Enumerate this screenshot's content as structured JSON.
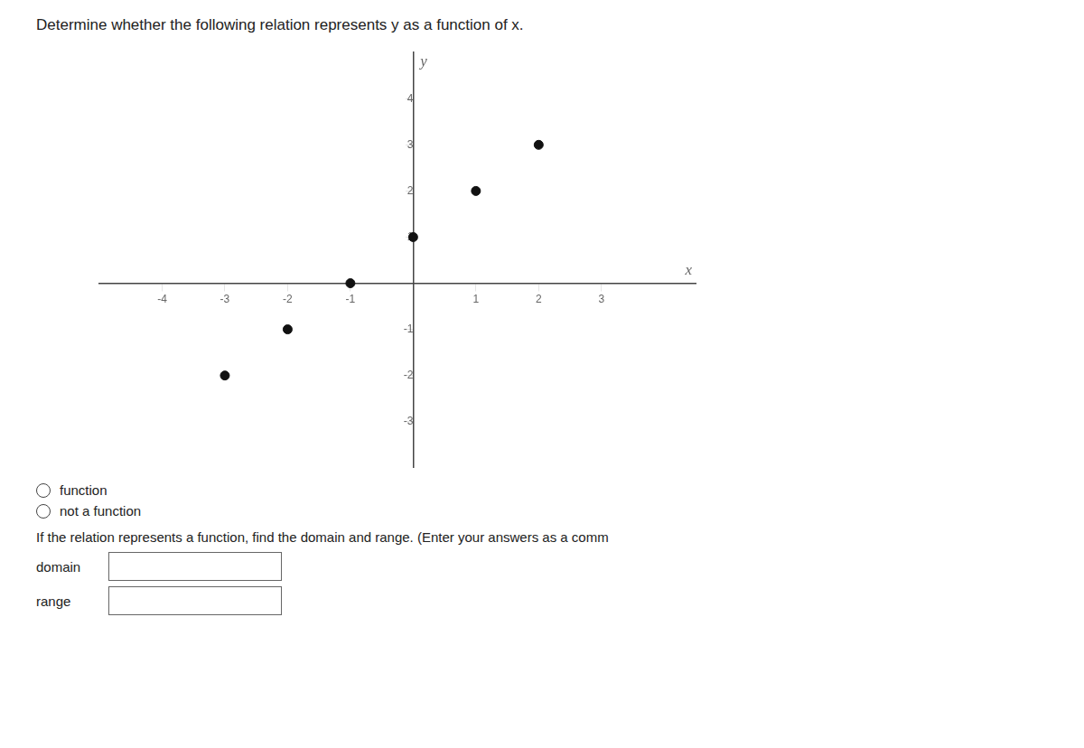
{
  "chart_data": {
    "type": "scatter",
    "title": "Determine whether the following relation represents y as a function of x.",
    "xlabel": "x",
    "ylabel": "y",
    "x": [
      -1,
      -2,
      -3,
      0,
      1,
      2
    ],
    "values": [
      0,
      -1,
      -2,
      1,
      2,
      3
    ],
    "color": "#111111",
    "xlim": [
      -5,
      4.5
    ],
    "ylim": [
      -4,
      5
    ],
    "xticks": [
      -4,
      -3,
      -2,
      -1,
      1,
      2,
      3
    ],
    "yticks": [
      -3,
      -2,
      -1,
      1,
      2,
      3,
      4
    ],
    "grid": false,
    "annotations": [
      "function",
      "not a function",
      "If the relation represents a function, find the domain and range. (Enter your answers as a comm",
      "domain",
      "range"
    ]
  }
}
